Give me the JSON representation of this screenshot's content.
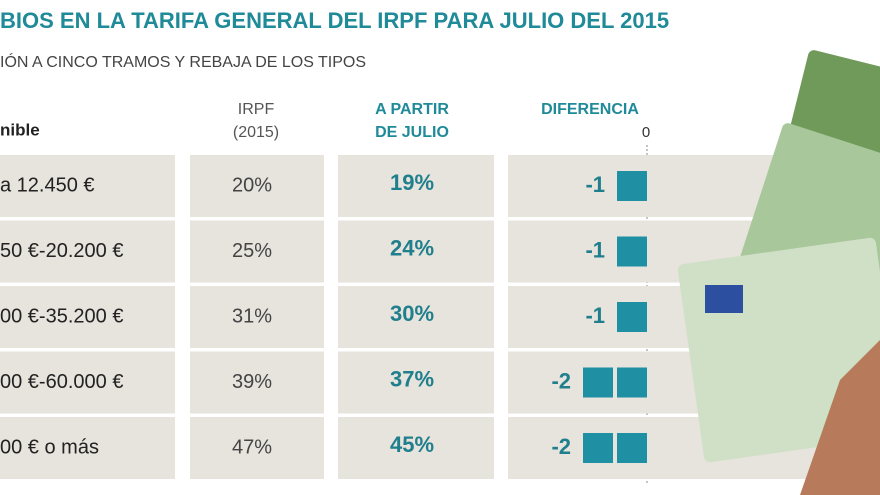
{
  "header": {
    "title": "BIOS EN LA TARIFA GENERAL DEL IRPF PARA JULIO DEL 2015",
    "subtitle": "IÓN A CINCO TRAMOS Y REBAJA DE LOS TIPOS"
  },
  "table": {
    "columns": [
      "nible",
      "IRPF",
      "(2015)",
      "A PARTIR",
      "DE JULIO",
      "DIFERENCIA"
    ],
    "zero": 0,
    "rows": [
      [
        "a 12.450 €",
        "20%",
        "19%",
        -1
      ],
      [
        "50 €-20.200 €",
        "25%",
        "24%",
        -1
      ],
      [
        "00 €-35.200 €",
        "31%",
        "30%",
        -1
      ],
      [
        "00 €-60.000 €",
        "39%",
        "37%",
        -2
      ],
      [
        "00 € o más",
        "47%",
        "45%",
        -2
      ]
    ]
  }
}
